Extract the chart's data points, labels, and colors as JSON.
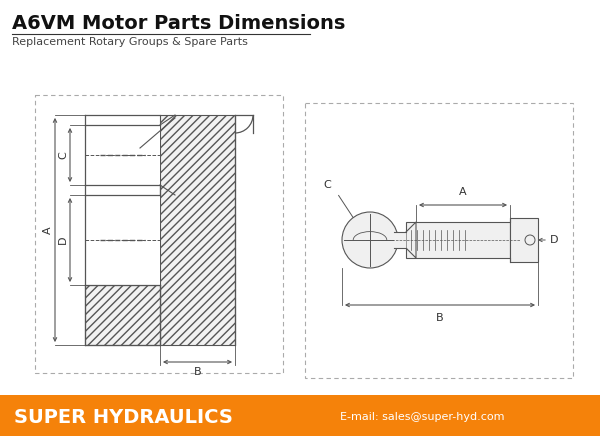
{
  "title": "A6VM Motor Parts Dimensions",
  "subtitle": "Replacement Rotary Groups & Spare Parts",
  "title_fontsize": 14,
  "subtitle_fontsize": 8,
  "footer_text": "SUPER HYDRAULICS",
  "footer_email": "E-mail: sales@super-hyd.com",
  "footer_bg_color": "#F5820A",
  "footer_text_color": "#FFFFFF",
  "bg_color": "#FFFFFF",
  "line_color": "#555555",
  "dim_label_color": "#444444",
  "hatch_color": "#888888"
}
